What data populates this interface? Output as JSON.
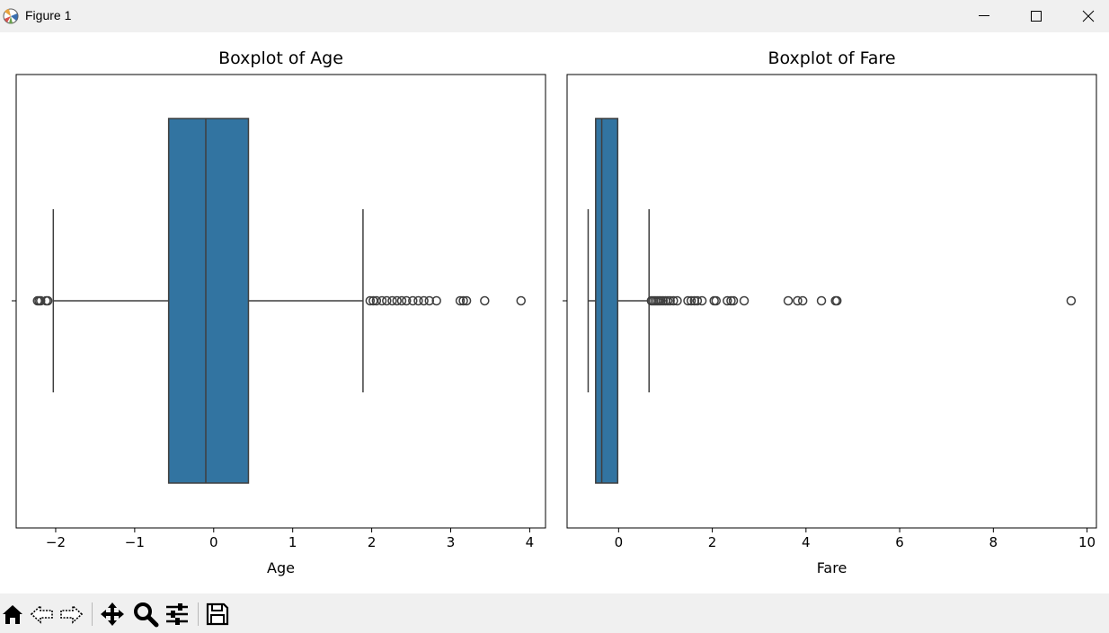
{
  "window": {
    "title": "Figure 1"
  },
  "colors": {
    "box_fill": "#3274a1",
    "line": "#3f3f3f",
    "axes": "#000000",
    "chrome": "#f0f0f0"
  },
  "icons": {
    "app": "matplotlib-icon",
    "minimize": "minimize-icon",
    "maximize": "maximize-icon",
    "close": "close-icon",
    "toolbar": [
      "home-icon",
      "back-arrow-icon",
      "forward-arrow-icon",
      "pan-move-icon",
      "zoom-magnifier-icon",
      "configure-subplots-icon",
      "save-disk-icon"
    ]
  },
  "chart_data": [
    {
      "type": "box",
      "orientation": "horizontal",
      "title": "Boxplot of Age",
      "xlabel": "Age",
      "xlim": [
        -2.5,
        4.2
      ],
      "xticks": [
        -2,
        -1,
        0,
        1,
        2,
        3,
        4
      ],
      "xtick_labels": [
        "−2",
        "−1",
        "0",
        "1",
        "2",
        "3",
        "4"
      ],
      "whisker_low": -2.03,
      "q1": -0.57,
      "median": -0.1,
      "q3": 0.44,
      "whisker_high": 1.89,
      "outliers": [
        -2.23,
        -2.21,
        -2.19,
        -2.12,
        -2.1,
        1.98,
        2.02,
        2.06,
        2.13,
        2.19,
        2.26,
        2.32,
        2.38,
        2.44,
        2.52,
        2.59,
        2.66,
        2.73,
        2.82,
        3.12,
        3.16,
        3.2,
        3.43,
        3.89
      ],
      "grid": false
    },
    {
      "type": "box",
      "orientation": "horizontal",
      "title": "Boxplot of Fare",
      "xlabel": "Fare",
      "xlim": [
        -1.1,
        10.2
      ],
      "xticks": [
        0,
        2,
        4,
        6,
        8,
        10
      ],
      "xtick_labels": [
        "0",
        "2",
        "4",
        "6",
        "8",
        "10"
      ],
      "whisker_low": -0.65,
      "q1": -0.49,
      "median": -0.36,
      "q3": -0.02,
      "whisker_high": 0.65,
      "outliers": [
        0.7,
        0.74,
        0.78,
        0.82,
        0.86,
        0.9,
        0.95,
        1.0,
        1.05,
        1.1,
        1.17,
        1.25,
        1.48,
        1.55,
        1.62,
        1.68,
        1.78,
        2.04,
        2.08,
        2.32,
        2.4,
        2.45,
        2.68,
        3.62,
        3.82,
        3.93,
        4.33,
        4.63,
        4.66,
        9.66
      ],
      "grid": false
    }
  ]
}
